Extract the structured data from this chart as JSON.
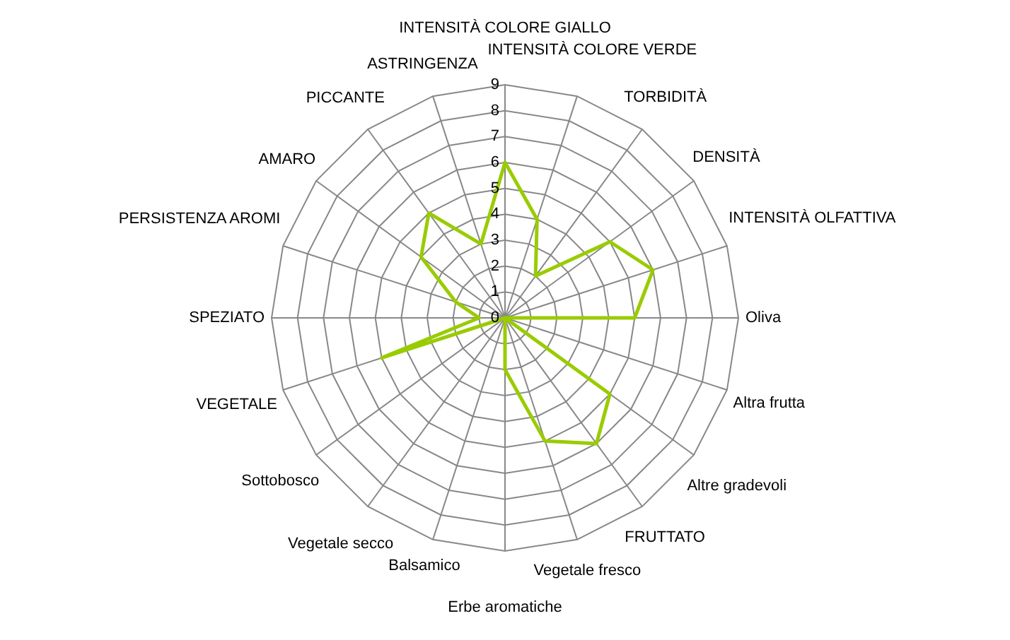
{
  "chart_data": {
    "type": "radar",
    "categories": [
      "INTENSITÀ COLORE GIALLO",
      "INTENSITÀ COLORE VERDE",
      "TORBIDITÀ",
      "DENSITÀ",
      "INTENSITÀ OLFATTIVA",
      "Oliva",
      "Altra frutta",
      "Altre gradevoli",
      "FRUTTATO",
      "Vegetale fresco",
      "Erbe aromatiche",
      "Balsamico",
      "Vegetale secco",
      "Sottobosco",
      "VEGETALE",
      "SPEZIATO",
      "PERSISTENZA AROMI",
      "AMARO",
      "PICCANTE",
      "ASTRINGENZA"
    ],
    "series": [
      {
        "color": "#99cc00",
        "values": [
          6,
          4,
          2,
          5,
          6,
          5,
          0,
          5,
          6,
          5,
          2,
          0,
          0,
          0,
          5,
          1,
          2,
          4,
          5,
          3
        ]
      }
    ],
    "ylim": [
      0,
      9
    ],
    "yticks": [
      0,
      1,
      2,
      3,
      4,
      5,
      6,
      7,
      8,
      9
    ],
    "grid": true,
    "marker": "none"
  }
}
